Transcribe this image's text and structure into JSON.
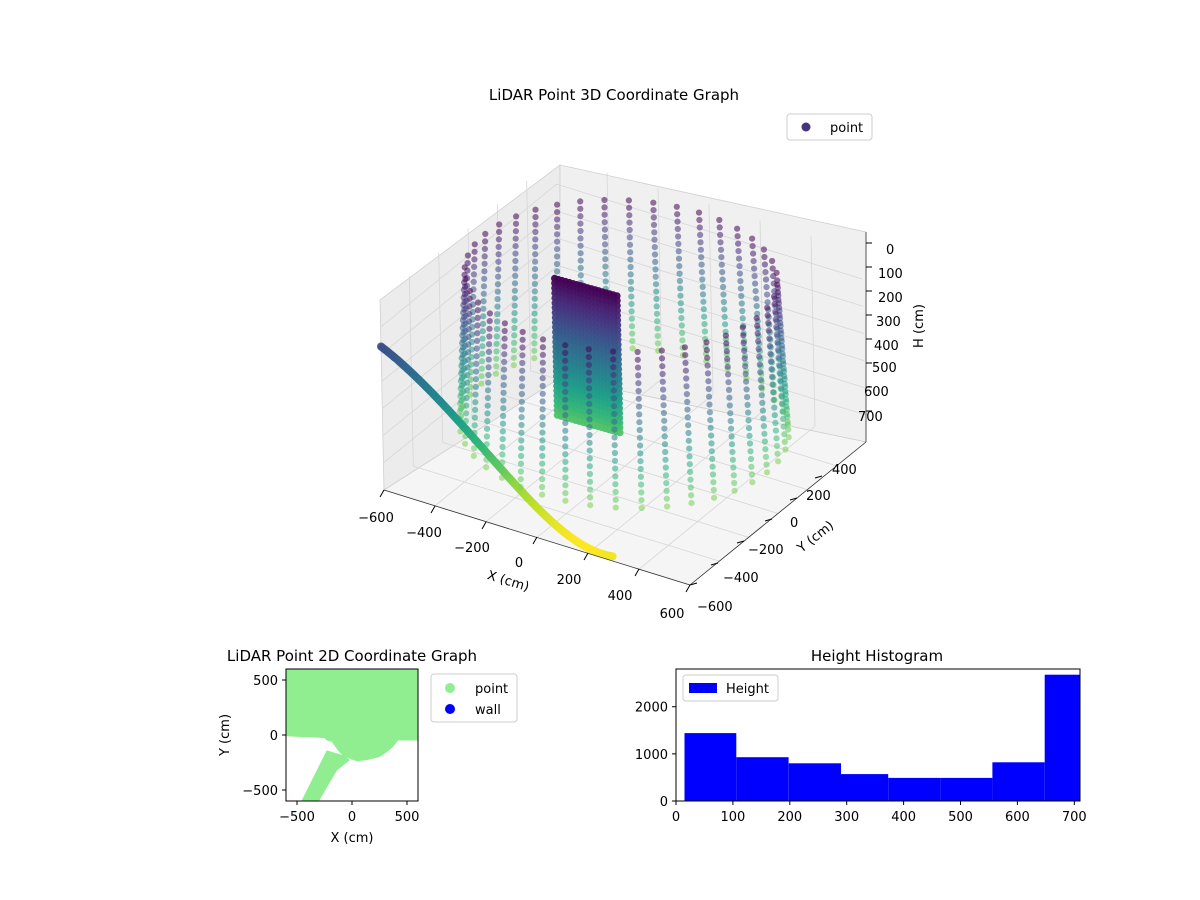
{
  "chart_data": [
    {
      "type": "scatter",
      "projection": "3d",
      "title": "LiDAR Point 3D Coordinate Graph",
      "xlabel": "X (cm)",
      "ylabel": "Y (cm)",
      "zlabel": "H (cm)",
      "xlim": [
        -600,
        600
      ],
      "ylim": [
        -600,
        600
      ],
      "zlim": [
        700,
        0
      ],
      "z_inverted": true,
      "xticks": [
        "−600",
        "−400",
        "−200",
        "0",
        "200",
        "400",
        "600"
      ],
      "yticks": [
        "−600",
        "−400",
        "−200",
        "0",
        "200",
        "400"
      ],
      "zticks": [
        "0",
        "100",
        "200",
        "300",
        "400",
        "500",
        "600",
        "700"
      ],
      "colormap": "viridis",
      "legend": {
        "placement": "upper-right",
        "entries": [
          {
            "label": "point",
            "color": "#46337e"
          }
        ]
      },
      "grid": true,
      "series": [
        {
          "name": "point"
        }
      ]
    },
    {
      "type": "scatter",
      "title": "LiDAR Point 2D Coordinate Graph",
      "xlabel": "X (cm)",
      "ylabel": "Y (cm)",
      "xlim": [
        -600,
        600
      ],
      "ylim": [
        -600,
        600
      ],
      "xticks": [
        "−500",
        "0",
        "500"
      ],
      "yticks": [
        "500",
        "0",
        "−500"
      ],
      "legend": {
        "placement": "outside-right",
        "entries": [
          {
            "label": "point",
            "color": "#90ee90"
          },
          {
            "label": "wall",
            "color": "#0000ff"
          }
        ]
      },
      "series": [
        {
          "name": "point",
          "color": "#90ee90",
          "regions": [
            {
              "x": [
                -600,
                600,
                600,
                420,
                370,
                310,
                250,
                150,
                50,
                -10,
                -80,
                -120,
                -165,
                -185,
                -220,
                -250,
                -300,
                -380,
                -460,
                -530,
                -600
              ],
              "y": [
                600,
                600,
                -50,
                -50,
                -110,
                -160,
                -200,
                -225,
                -240,
                -220,
                -190,
                -150,
                -90,
                -60,
                -55,
                -30,
                -25,
                -20,
                -18,
                -15,
                -10
              ]
            },
            {
              "x": [
                -460,
                -230,
                -60,
                -20,
                -135,
                -300,
                -400
              ],
              "y": [
                -600,
                -140,
                -190,
                -230,
                -320,
                -600,
                -600
              ]
            }
          ]
        },
        {
          "name": "wall",
          "color": "#0000ff"
        }
      ]
    },
    {
      "type": "bar",
      "title": "Height Histogram",
      "xlim": [
        0,
        710
      ],
      "ylim": [
        0,
        2800
      ],
      "xticks": [
        "0",
        "100",
        "200",
        "300",
        "400",
        "500",
        "600",
        "700"
      ],
      "yticks": [
        "0",
        "1000",
        "2000"
      ],
      "bin_edges": [
        15,
        106,
        198,
        290,
        373,
        465,
        556,
        648,
        710
      ],
      "values": [
        1440,
        930,
        800,
        570,
        490,
        490,
        820,
        2680
      ],
      "color": "#0000ff",
      "legend": {
        "placement": "upper-left",
        "entries": [
          {
            "label": "Height",
            "color": "#0000ff"
          }
        ]
      },
      "series": [
        {
          "name": "Height"
        }
      ]
    }
  ]
}
